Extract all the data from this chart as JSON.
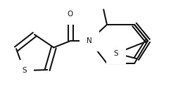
{
  "background_color": "#ffffff",
  "bond_color": "#1a1a1a",
  "atom_color": "#1a1a1a",
  "line_width": 1.5,
  "figsize": [
    2.7,
    1.32
  ],
  "dpi": 100,
  "xlim": [
    0,
    270
  ],
  "ylim": [
    0,
    132
  ]
}
